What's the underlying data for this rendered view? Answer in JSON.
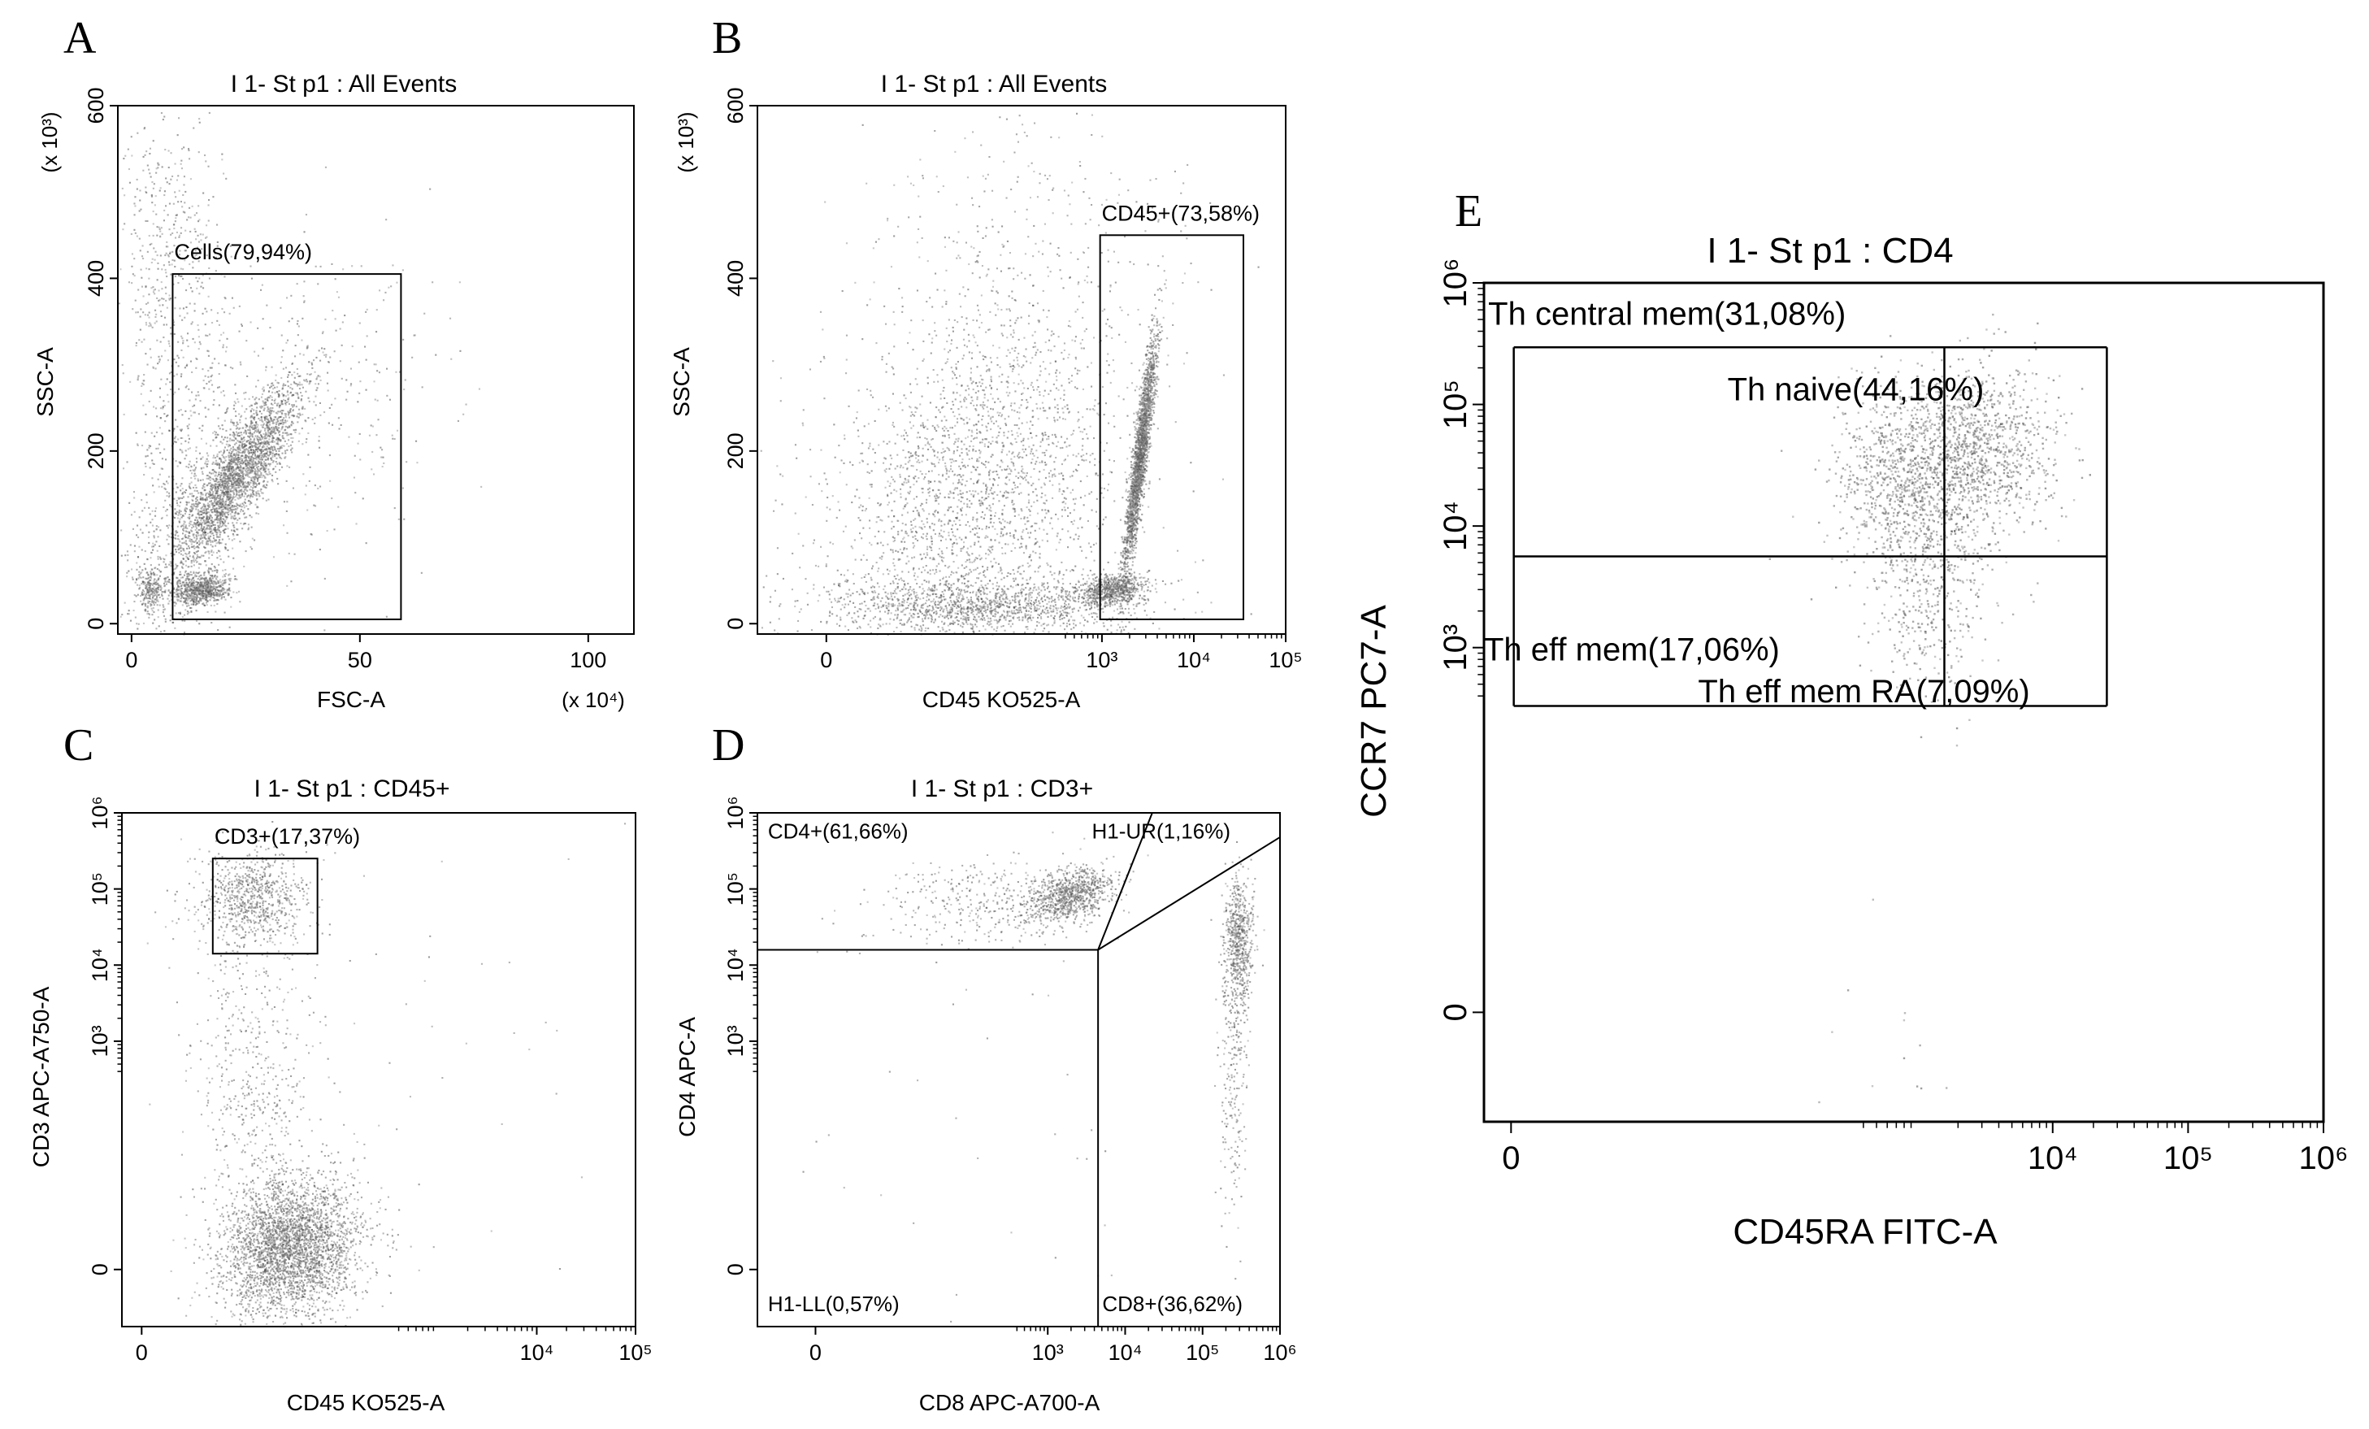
{
  "figure": {
    "panels": [
      {
        "letter": "A",
        "title": "I 1- St p1 : All Events",
        "xlabel": "FSC-A",
        "ylabel": "SSC-A",
        "ymult": "(x 10³)",
        "xmult": "(x 10⁴)"
      },
      {
        "letter": "B",
        "title": "I 1- St p1 : All Events",
        "xlabel": "CD45 KO525-A",
        "ylabel": "SSC-A",
        "ymult": "(x 10³)"
      },
      {
        "letter": "C",
        "title": "I 1- St p1 : CD45+",
        "xlabel": "CD45 KO525-A",
        "ylabel": "CD3 APC-A750-A"
      },
      {
        "letter": "D",
        "title": "I 1- St p1 : CD3+",
        "xlabel": "CD8 APC-A700-A",
        "ylabel": "CD4 APC-A"
      },
      {
        "letter": "E",
        "title": "I 1- St p1 : CD4",
        "xlabel": "CD45RA FITC-A",
        "ylabel": "CCR7 PC7-A"
      }
    ]
  },
  "chart_data": [
    {
      "id": "A",
      "type": "scatter",
      "title": "I 1- St p1 : All Events",
      "xlabel": "FSC-A",
      "ylabel": "SSC-A",
      "x_scale": "linear",
      "x_unit": "(x 10⁴)",
      "y_scale": "linear",
      "y_unit": "(x 10³)",
      "xlim": [
        -3,
        110
      ],
      "ylim": [
        -12,
        600
      ],
      "x_ticks": [
        {
          "v": 0,
          "label": "0"
        },
        {
          "v": 50,
          "label": "50"
        },
        {
          "v": 100,
          "label": "100"
        }
      ],
      "y_ticks": [
        {
          "v": 0,
          "label": "0"
        },
        {
          "v": 200,
          "label": "200"
        },
        {
          "v": 400,
          "label": "400"
        },
        {
          "v": 600,
          "label": "600"
        }
      ],
      "gates": [
        {
          "label": "Cells(79,94%)",
          "shape": "rect",
          "x": [
            9,
            59
          ],
          "y": [
            5,
            405
          ]
        }
      ],
      "populations": [
        {
          "n": 2600,
          "mx": 23,
          "my": 170,
          "sx": 7,
          "sy": 55,
          "rho": 0.85
        },
        {
          "n": 700,
          "mx": 15,
          "my": 40,
          "sx": 3,
          "sy": 9,
          "rho": 0.2
        },
        {
          "n": 220,
          "mx": 4,
          "my": 40,
          "sx": 1.4,
          "sy": 12,
          "rho": 0.1
        },
        {
          "n": 900,
          "mx": 12,
          "my": 150,
          "sx": 8,
          "sy": 120,
          "rho": 0.4
        },
        {
          "n": 450,
          "mx": 8,
          "my": 430,
          "sx": 5,
          "sy": 100,
          "rho": 0.0
        },
        {
          "n": 280,
          "mx": 42,
          "my": 260,
          "sx": 13,
          "sy": 100,
          "rho": 0.2
        }
      ]
    },
    {
      "id": "B",
      "type": "scatter",
      "title": "I 1- St p1 : All Events",
      "xlabel": "CD45 KO525-A",
      "ylabel": "SSC-A",
      "x_scale": "logicle",
      "y_scale": "linear",
      "y_unit": "(x 10³)",
      "xlim": [
        -0.75,
        5
      ],
      "ylim": [
        -12,
        600
      ],
      "x_ticks": [
        {
          "v": 0,
          "label": "0"
        },
        {
          "v": 3,
          "label": "10³"
        },
        {
          "v": 4,
          "label": "10⁴"
        },
        {
          "v": 5,
          "label": "10⁵"
        }
      ],
      "y_ticks": [
        {
          "v": 0,
          "label": "0"
        },
        {
          "v": 200,
          "label": "200"
        },
        {
          "v": 400,
          "label": "400"
        },
        {
          "v": 600,
          "label": "600"
        }
      ],
      "gates": [
        {
          "label": "CD45+(73,58%)",
          "shape": "rect",
          "x": [
            2.98,
            4.54
          ],
          "y": [
            5,
            450
          ]
        }
      ],
      "populations": [
        {
          "n": 2300,
          "mx": 3.4,
          "my": 190,
          "sx": 0.09,
          "sy": 70,
          "rho": 0.9
        },
        {
          "n": 700,
          "mx": 3.1,
          "my": 40,
          "sx": 0.18,
          "sy": 9,
          "rho": 0.3
        },
        {
          "n": 2600,
          "mx": 1.6,
          "my": 150,
          "sx": 0.8,
          "sy": 115,
          "rho": 0.25
        },
        {
          "n": 1300,
          "mx": 1.7,
          "my": 22,
          "sx": 0.9,
          "sy": 16,
          "rho": 0.0
        },
        {
          "n": 300,
          "mx": 2.2,
          "my": 430,
          "sx": 0.9,
          "sy": 90,
          "rho": 0.0
        }
      ]
    },
    {
      "id": "C",
      "type": "scatter",
      "title": "I 1- St p1 : CD45+",
      "xlabel": "CD45 KO525-A",
      "ylabel": "CD3 APC-A750-A",
      "x_scale": "logicle",
      "y_scale": "logicle",
      "xlim": [
        -0.2,
        5
      ],
      "ylim": [
        -0.75,
        6
      ],
      "x_ticks": [
        {
          "v": 0,
          "label": "0"
        },
        {
          "v": 4,
          "label": "10⁴"
        },
        {
          "v": 5,
          "label": "10⁵"
        }
      ],
      "y_ticks": [
        {
          "v": 0,
          "label": "0"
        },
        {
          "v": 3,
          "label": "10³"
        },
        {
          "v": 4,
          "label": "10⁴"
        },
        {
          "v": 5,
          "label": "10⁵"
        },
        {
          "v": 6,
          "label": "10⁶"
        }
      ],
      "gates": [
        {
          "label": "CD3+(17,37%)",
          "shape": "rect",
          "x": [
            0.72,
            1.78
          ],
          "y": [
            4.15,
            5.4
          ]
        }
      ],
      "populations": [
        {
          "n": 3200,
          "mx": 1.5,
          "my": 0.3,
          "sx": 0.35,
          "sy": 0.45,
          "rho": 0.1
        },
        {
          "n": 800,
          "mx": 1.1,
          "my": 4.9,
          "sx": 0.28,
          "sy": 0.32,
          "rho": 0.0
        },
        {
          "n": 500,
          "mx": 1.1,
          "my": 2.5,
          "sx": 0.3,
          "sy": 1.1,
          "rho": 0.0
        },
        {
          "n": 60,
          "mx": 2.6,
          "my": 2.5,
          "sx": 1.2,
          "sy": 1.8,
          "rho": 0.0
        }
      ]
    },
    {
      "id": "D",
      "type": "scatter",
      "title": "I 1- St p1 : CD3+",
      "xlabel": "CD8 APC-A700-A",
      "ylabel": "CD4 APC-A",
      "x_scale": "logicle",
      "y_scale": "logicle",
      "xlim": [
        -0.75,
        6
      ],
      "ylim": [
        -0.75,
        6
      ],
      "x_ticks": [
        {
          "v": 0,
          "label": "0"
        },
        {
          "v": 3,
          "label": "10³"
        },
        {
          "v": 4,
          "label": "10⁴"
        },
        {
          "v": 5,
          "label": "10⁵"
        },
        {
          "v": 6,
          "label": "10⁶"
        }
      ],
      "y_ticks": [
        {
          "v": 0,
          "label": "0"
        },
        {
          "v": 3,
          "label": "10³"
        },
        {
          "v": 4,
          "label": "10⁴"
        },
        {
          "v": 5,
          "label": "10⁵"
        },
        {
          "v": 6,
          "label": "10⁶"
        }
      ],
      "gates": [
        {
          "label": "CD4+(61,66%)",
          "shape": "quadrant",
          "corner": "top-left"
        },
        {
          "label": "H1-UR(1,16%)",
          "shape": "quadrant",
          "corner": "top-right"
        },
        {
          "label": "H1-LL(0,57%)",
          "shape": "quadrant",
          "corner": "bottom-left"
        },
        {
          "label": "CD8+(36,62%)",
          "shape": "quadrant",
          "corner": "bottom-right"
        }
      ],
      "gate_lines": [
        {
          "from": [
            -0.75,
            4.2
          ],
          "to": [
            3.65,
            4.2
          ]
        },
        {
          "from": [
            3.65,
            -0.75
          ],
          "to": [
            3.65,
            4.2
          ]
        },
        {
          "from": [
            3.65,
            4.2
          ],
          "to": [
            4.35,
            6
          ]
        },
        {
          "from": [
            3.65,
            4.2
          ],
          "to": [
            6,
            5.68
          ]
        }
      ],
      "populations": [
        {
          "n": 900,
          "mx": 3.3,
          "my": 4.92,
          "sx": 0.3,
          "sy": 0.18,
          "rho": 0.4
        },
        {
          "n": 350,
          "mx": 2.1,
          "my": 4.8,
          "sx": 0.7,
          "sy": 0.3,
          "rho": 0.2
        },
        {
          "n": 650,
          "mx": 5.45,
          "my": 4.3,
          "sx": 0.1,
          "sy": 0.45,
          "rho": 0.0
        },
        {
          "n": 220,
          "mx": 5.4,
          "my": 2.6,
          "sx": 0.1,
          "sy": 0.9,
          "rho": 0.0
        },
        {
          "n": 30,
          "mx": 2.0,
          "my": 1.5,
          "sx": 1.2,
          "sy": 1.2,
          "rho": 0.0
        }
      ]
    },
    {
      "id": "E",
      "type": "scatter",
      "title": "I 1- St p1 : CD4",
      "xlabel": "CD45RA FITC-A",
      "ylabel": "CCR7 PC7-A",
      "x_scale": "logicle",
      "y_scale": "logicle",
      "xlim": [
        -0.2,
        6
      ],
      "ylim": [
        -0.9,
        6
      ],
      "x_ticks": [
        {
          "v": 0,
          "label": "0"
        },
        {
          "v": 4,
          "label": "10⁴"
        },
        {
          "v": 5,
          "label": "10⁵"
        },
        {
          "v": 6,
          "label": "10⁶"
        }
      ],
      "y_ticks": [
        {
          "v": 0,
          "label": "0"
        },
        {
          "v": 3,
          "label": "10³"
        },
        {
          "v": 4,
          "label": "10⁴"
        },
        {
          "v": 5,
          "label": "10⁵"
        },
        {
          "v": 6,
          "label": "10⁶"
        }
      ],
      "gates": [
        {
          "label": "Th central mem(31,08%)",
          "shape": "quadrant",
          "corner": "top-left"
        },
        {
          "label": "Th naive(44,16%)",
          "shape": "quadrant",
          "corner": "top-right"
        },
        {
          "label": "Th eff mem RA(7,09%)",
          "shape": "quadrant",
          "corner": "bottom-right"
        },
        {
          "label": "Th eff mem(17,06%)",
          "shape": "quadrant",
          "corner": "bottom-left"
        }
      ],
      "gate_lines": [
        {
          "from": [
            0.02,
            5.47
          ],
          "to": [
            4.4,
            5.47
          ]
        },
        {
          "from": [
            4.4,
            5.47
          ],
          "to": [
            4.4,
            2.52
          ]
        },
        {
          "from": [
            4.4,
            2.52
          ],
          "to": [
            0.02,
            2.52
          ]
        },
        {
          "from": [
            0.02,
            2.52
          ],
          "to": [
            0.02,
            5.47
          ]
        },
        {
          "from": [
            0.02,
            3.75
          ],
          "to": [
            4.4,
            3.75
          ]
        },
        {
          "from": [
            3.2,
            2.52
          ],
          "to": [
            3.2,
            5.47
          ]
        }
      ],
      "populations": [
        {
          "n": 1200,
          "mx": 3.0,
          "my": 4.35,
          "sx": 0.3,
          "sy": 0.4,
          "rho": 0.0
        },
        {
          "n": 900,
          "mx": 3.45,
          "my": 4.65,
          "sx": 0.3,
          "sy": 0.35,
          "rho": 0.0
        },
        {
          "n": 300,
          "mx": 3.1,
          "my": 3.3,
          "sx": 0.25,
          "sy": 0.35,
          "rho": 0.0
        },
        {
          "n": 12,
          "mx": 2.7,
          "my": -0.2,
          "sx": 0.3,
          "sy": 0.35,
          "rho": 0.0
        }
      ]
    }
  ]
}
